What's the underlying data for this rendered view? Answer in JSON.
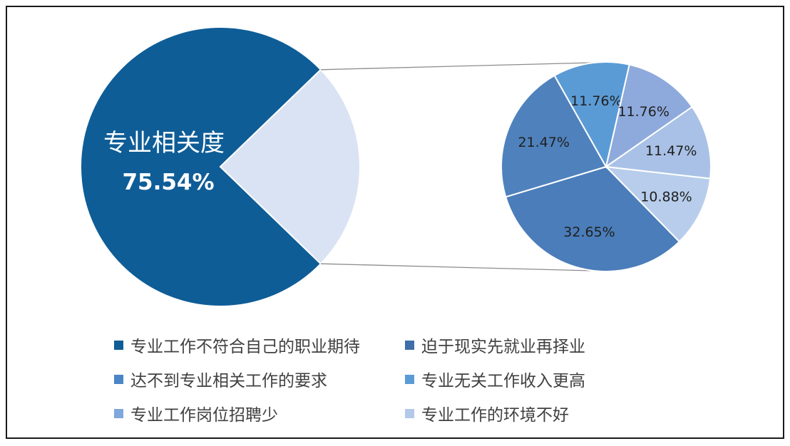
{
  "chart_data": {
    "type": "bar-of-pie",
    "main_pie": {
      "slices": [
        {
          "name": "专业相关度",
          "value": 75.54,
          "color": "#0e5d97"
        },
        {
          "name": "",
          "value": 24.46,
          "color": "#dae3f3"
        }
      ],
      "label_name": "专业相关度",
      "label_value": "75.54%"
    },
    "sub_pie": {
      "slices": [
        {
          "name": "专业工作不符合自己的职业期待",
          "value": 32.65,
          "label": "32.65%",
          "color": "#4a7dba"
        },
        {
          "name": "迫于现实先就业再择业",
          "value": 21.47,
          "label": "21.47%",
          "color": "#4f82bd"
        },
        {
          "name": "达不到专业相关工作的要求",
          "value": 11.76,
          "label": "11.76%",
          "color": "#5b9bd5"
        },
        {
          "name": "专业无关工作收入更高",
          "value": 11.76,
          "label": "11.76%",
          "color": "#8eaadc"
        },
        {
          "name": "专业工作岗位招聘少",
          "value": 11.47,
          "label": "11.47%",
          "color": "#a9c1e6"
        },
        {
          "name": "专业工作的环境不好",
          "value": 10.88,
          "label": "10.88%",
          "color": "#b7cdeb"
        }
      ]
    },
    "legend": [
      {
        "label": "专业工作不符合自己的职业期待",
        "color": "#0e5d97"
      },
      {
        "label": "迫于现实先就业再择业",
        "color": "#3e6fa8"
      },
      {
        "label": "达不到专业相关工作的要求",
        "color": "#4a86c6"
      },
      {
        "label": "专业无关工作收入更高",
        "color": "#5b9bd5"
      },
      {
        "label": "专业工作岗位招聘少",
        "color": "#7ea7dc"
      },
      {
        "label": "专业工作的环境不好",
        "color": "#b4c9ea"
      }
    ]
  }
}
